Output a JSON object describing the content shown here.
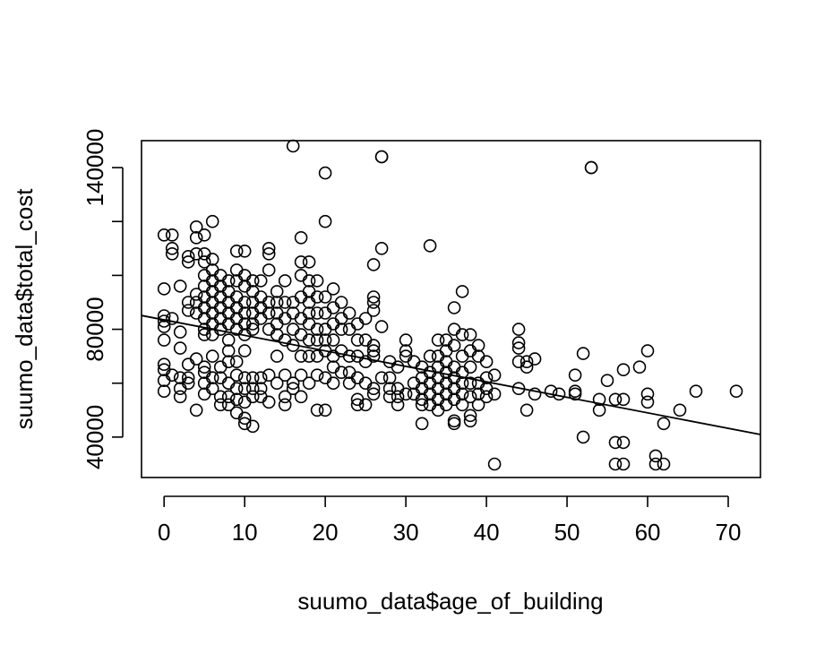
{
  "chart_data": {
    "type": "scatter",
    "title": "",
    "xlabel": "suumo_data$age_of_building",
    "ylabel": "suumo_data$total_cost",
    "xlim": [
      -2.8,
      74
    ],
    "ylim": [
      25000,
      150000
    ],
    "xticks": [
      0,
      10,
      20,
      30,
      40,
      50,
      60,
      70
    ],
    "xtick_labels": [
      "0",
      "10",
      "20",
      "30",
      "40",
      "50",
      "60",
      "70"
    ],
    "yticks": [
      40000,
      80000,
      140000
    ],
    "ytick_labels": [
      "40000",
      "80000",
      "140000"
    ],
    "yticks_unlabeled": [
      60000,
      100000,
      120000
    ],
    "grid": false,
    "legend": "none",
    "regression_line": {
      "intercept": 83500,
      "slope": -575
    },
    "points": [
      [
        0,
        115000
      ],
      [
        0,
        85000
      ],
      [
        0,
        83000
      ],
      [
        0,
        81000
      ],
      [
        0,
        76000
      ],
      [
        0,
        95000
      ],
      [
        0,
        67000
      ],
      [
        0,
        65000
      ],
      [
        0,
        61000
      ],
      [
        0,
        57000
      ],
      [
        1,
        115000
      ],
      [
        1,
        110000
      ],
      [
        1,
        108000
      ],
      [
        1,
        84000
      ],
      [
        1,
        63000
      ],
      [
        2,
        96000
      ],
      [
        2,
        79000
      ],
      [
        2,
        73000
      ],
      [
        2,
        62000
      ],
      [
        2,
        58000
      ],
      [
        2,
        55000
      ],
      [
        3,
        107000
      ],
      [
        3,
        105000
      ],
      [
        3,
        90000
      ],
      [
        3,
        87000
      ],
      [
        3,
        67000
      ],
      [
        3,
        62000
      ],
      [
        3,
        60000
      ],
      [
        4,
        118000
      ],
      [
        4,
        114000
      ],
      [
        4,
        108000
      ],
      [
        4,
        93000
      ],
      [
        4,
        90000
      ],
      [
        4,
        86000
      ],
      [
        4,
        69000
      ],
      [
        4,
        50000
      ],
      [
        5,
        115000
      ],
      [
        5,
        108000
      ],
      [
        5,
        105000
      ],
      [
        5,
        100000
      ],
      [
        5,
        96000
      ],
      [
        5,
        92000
      ],
      [
        5,
        88000
      ],
      [
        5,
        84000
      ],
      [
        5,
        80000
      ],
      [
        5,
        78000
      ],
      [
        5,
        66000
      ],
      [
        5,
        64000
      ],
      [
        5,
        60000
      ],
      [
        5,
        56000
      ],
      [
        6,
        120000
      ],
      [
        6,
        106000
      ],
      [
        6,
        102000
      ],
      [
        6,
        98000
      ],
      [
        6,
        94000
      ],
      [
        6,
        90000
      ],
      [
        6,
        86000
      ],
      [
        6,
        82000
      ],
      [
        6,
        78000
      ],
      [
        6,
        70000
      ],
      [
        6,
        62000
      ],
      [
        6,
        58000
      ],
      [
        7,
        100000
      ],
      [
        7,
        96000
      ],
      [
        7,
        92000
      ],
      [
        7,
        88000
      ],
      [
        7,
        84000
      ],
      [
        7,
        80000
      ],
      [
        7,
        66000
      ],
      [
        7,
        62000
      ],
      [
        7,
        55000
      ],
      [
        7,
        52000
      ],
      [
        8,
        98000
      ],
      [
        8,
        94000
      ],
      [
        8,
        90000
      ],
      [
        8,
        86000
      ],
      [
        8,
        82000
      ],
      [
        8,
        76000
      ],
      [
        8,
        72000
      ],
      [
        8,
        68000
      ],
      [
        8,
        60000
      ],
      [
        8,
        55000
      ],
      [
        8,
        52000
      ],
      [
        9,
        109000
      ],
      [
        9,
        102000
      ],
      [
        9,
        98000
      ],
      [
        9,
        92000
      ],
      [
        9,
        88000
      ],
      [
        9,
        84000
      ],
      [
        9,
        80000
      ],
      [
        9,
        68000
      ],
      [
        9,
        63000
      ],
      [
        9,
        58000
      ],
      [
        9,
        54000
      ],
      [
        9,
        49000
      ],
      [
        10,
        109000
      ],
      [
        10,
        100000
      ],
      [
        10,
        96000
      ],
      [
        10,
        90000
      ],
      [
        10,
        86000
      ],
      [
        10,
        82000
      ],
      [
        10,
        78000
      ],
      [
        10,
        72000
      ],
      [
        10,
        62000
      ],
      [
        10,
        58000
      ],
      [
        10,
        53000
      ],
      [
        10,
        47000
      ],
      [
        10,
        45000
      ],
      [
        11,
        98000
      ],
      [
        11,
        94000
      ],
      [
        11,
        90000
      ],
      [
        11,
        86000
      ],
      [
        11,
        82000
      ],
      [
        11,
        80000
      ],
      [
        11,
        62000
      ],
      [
        11,
        58000
      ],
      [
        11,
        55000
      ],
      [
        11,
        44000
      ],
      [
        12,
        98000
      ],
      [
        12,
        92000
      ],
      [
        12,
        88000
      ],
      [
        12,
        84000
      ],
      [
        12,
        62000
      ],
      [
        12,
        58000
      ],
      [
        12,
        55000
      ],
      [
        13,
        110000
      ],
      [
        13,
        108000
      ],
      [
        13,
        102000
      ],
      [
        13,
        90000
      ],
      [
        13,
        86000
      ],
      [
        13,
        80000
      ],
      [
        13,
        63000
      ],
      [
        13,
        53000
      ],
      [
        14,
        94000
      ],
      [
        14,
        90000
      ],
      [
        14,
        86000
      ],
      [
        14,
        82000
      ],
      [
        14,
        78000
      ],
      [
        14,
        70000
      ],
      [
        14,
        60000
      ],
      [
        15,
        98000
      ],
      [
        15,
        90000
      ],
      [
        15,
        84000
      ],
      [
        15,
        76000
      ],
      [
        15,
        63000
      ],
      [
        15,
        55000
      ],
      [
        15,
        52000
      ],
      [
        16,
        148000
      ],
      [
        16,
        90000
      ],
      [
        16,
        86000
      ],
      [
        16,
        80000
      ],
      [
        16,
        74000
      ],
      [
        16,
        60000
      ],
      [
        16,
        58000
      ],
      [
        17,
        114000
      ],
      [
        17,
        105000
      ],
      [
        17,
        100000
      ],
      [
        17,
        92000
      ],
      [
        17,
        84000
      ],
      [
        17,
        78000
      ],
      [
        17,
        70000
      ],
      [
        17,
        63000
      ],
      [
        17,
        55000
      ],
      [
        18,
        105000
      ],
      [
        18,
        98000
      ],
      [
        18,
        94000
      ],
      [
        18,
        90000
      ],
      [
        18,
        86000
      ],
      [
        18,
        82000
      ],
      [
        18,
        76000
      ],
      [
        18,
        70000
      ],
      [
        18,
        60000
      ],
      [
        19,
        98000
      ],
      [
        19,
        92000
      ],
      [
        19,
        86000
      ],
      [
        19,
        80000
      ],
      [
        19,
        76000
      ],
      [
        19,
        70000
      ],
      [
        19,
        63000
      ],
      [
        19,
        50000
      ],
      [
        20,
        138000
      ],
      [
        20,
        120000
      ],
      [
        20,
        92000
      ],
      [
        20,
        86000
      ],
      [
        20,
        80000
      ],
      [
        20,
        76000
      ],
      [
        20,
        72000
      ],
      [
        20,
        62000
      ],
      [
        20,
        50000
      ],
      [
        21,
        95000
      ],
      [
        21,
        88000
      ],
      [
        21,
        82000
      ],
      [
        21,
        76000
      ],
      [
        21,
        70000
      ],
      [
        21,
        66000
      ],
      [
        21,
        60000
      ],
      [
        22,
        90000
      ],
      [
        22,
        84000
      ],
      [
        22,
        80000
      ],
      [
        22,
        72000
      ],
      [
        22,
        64000
      ],
      [
        23,
        86000
      ],
      [
        23,
        80000
      ],
      [
        23,
        70000
      ],
      [
        23,
        64000
      ],
      [
        23,
        60000
      ],
      [
        24,
        82000
      ],
      [
        24,
        76000
      ],
      [
        24,
        70000
      ],
      [
        24,
        62000
      ],
      [
        24,
        54000
      ],
      [
        24,
        52000
      ],
      [
        25,
        84000
      ],
      [
        25,
        76000
      ],
      [
        25,
        68000
      ],
      [
        25,
        60000
      ],
      [
        25,
        52000
      ],
      [
        26,
        104000
      ],
      [
        26,
        92000
      ],
      [
        26,
        90000
      ],
      [
        26,
        87000
      ],
      [
        26,
        74000
      ],
      [
        26,
        72000
      ],
      [
        26,
        70000
      ],
      [
        26,
        58000
      ],
      [
        26,
        56000
      ],
      [
        27,
        144000
      ],
      [
        27,
        144000
      ],
      [
        27,
        110000
      ],
      [
        27,
        81000
      ],
      [
        27,
        62000
      ],
      [
        28,
        68000
      ],
      [
        28,
        62000
      ],
      [
        28,
        58000
      ],
      [
        28,
        55000
      ],
      [
        29,
        66000
      ],
      [
        29,
        58000
      ],
      [
        29,
        55000
      ],
      [
        29,
        52000
      ],
      [
        30,
        76000
      ],
      [
        30,
        72000
      ],
      [
        30,
        70000
      ],
      [
        30,
        56000
      ],
      [
        31,
        68000
      ],
      [
        31,
        60000
      ],
      [
        31,
        56000
      ],
      [
        32,
        66000
      ],
      [
        32,
        62000
      ],
      [
        32,
        58000
      ],
      [
        32,
        54000
      ],
      [
        32,
        52000
      ],
      [
        32,
        45000
      ],
      [
        33,
        111000
      ],
      [
        33,
        70000
      ],
      [
        33,
        64000
      ],
      [
        33,
        60000
      ],
      [
        33,
        56000
      ],
      [
        33,
        52000
      ],
      [
        34,
        76000
      ],
      [
        34,
        70000
      ],
      [
        34,
        66000
      ],
      [
        34,
        62000
      ],
      [
        34,
        58000
      ],
      [
        34,
        54000
      ],
      [
        34,
        50000
      ],
      [
        35,
        76000
      ],
      [
        35,
        72000
      ],
      [
        35,
        68000
      ],
      [
        35,
        64000
      ],
      [
        35,
        60000
      ],
      [
        35,
        56000
      ],
      [
        35,
        52000
      ],
      [
        36,
        88000
      ],
      [
        36,
        80000
      ],
      [
        36,
        74000
      ],
      [
        36,
        66000
      ],
      [
        36,
        62000
      ],
      [
        36,
        58000
      ],
      [
        36,
        54000
      ],
      [
        36,
        46000
      ],
      [
        36,
        45000
      ],
      [
        37,
        94000
      ],
      [
        37,
        78000
      ],
      [
        37,
        70000
      ],
      [
        37,
        64000
      ],
      [
        37,
        60000
      ],
      [
        37,
        56000
      ],
      [
        37,
        52000
      ],
      [
        38,
        78000
      ],
      [
        38,
        72000
      ],
      [
        38,
        66000
      ],
      [
        38,
        60000
      ],
      [
        38,
        55000
      ],
      [
        38,
        48000
      ],
      [
        38,
        46000
      ],
      [
        39,
        74000
      ],
      [
        39,
        70000
      ],
      [
        39,
        60000
      ],
      [
        39,
        56000
      ],
      [
        39,
        52000
      ],
      [
        40,
        68000
      ],
      [
        40,
        62000
      ],
      [
        40,
        58000
      ],
      [
        40,
        55000
      ],
      [
        41,
        63000
      ],
      [
        41,
        56000
      ],
      [
        41,
        30000
      ],
      [
        44,
        80000
      ],
      [
        44,
        75000
      ],
      [
        44,
        73000
      ],
      [
        44,
        68000
      ],
      [
        44,
        58000
      ],
      [
        45,
        68000
      ],
      [
        45,
        66000
      ],
      [
        45,
        50000
      ],
      [
        46,
        69000
      ],
      [
        46,
        56000
      ],
      [
        48,
        57000
      ],
      [
        49,
        56000
      ],
      [
        51,
        63000
      ],
      [
        51,
        57000
      ],
      [
        51,
        56000
      ],
      [
        52,
        71000
      ],
      [
        52,
        40000
      ],
      [
        53,
        140000
      ],
      [
        53,
        140000
      ],
      [
        54,
        54000
      ],
      [
        54,
        50000
      ],
      [
        55,
        61000
      ],
      [
        56,
        54000
      ],
      [
        56,
        38000
      ],
      [
        56,
        30000
      ],
      [
        57,
        65000
      ],
      [
        57,
        54000
      ],
      [
        57,
        38000
      ],
      [
        57,
        30000
      ],
      [
        59,
        66000
      ],
      [
        60,
        72000
      ],
      [
        60,
        56000
      ],
      [
        60,
        53000
      ],
      [
        61,
        33000
      ],
      [
        61,
        30000
      ],
      [
        62,
        45000
      ],
      [
        62,
        30000
      ],
      [
        64,
        50000
      ],
      [
        66,
        57000
      ],
      [
        71,
        57000
      ]
    ]
  }
}
